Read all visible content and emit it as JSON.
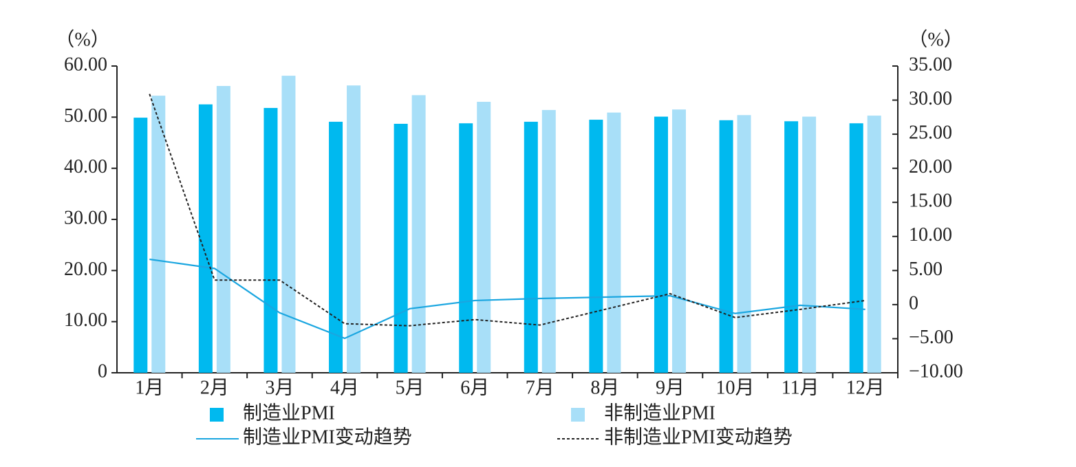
{
  "chart_data": {
    "type": "bar-line",
    "y_label": "（%）",
    "y2_label": "（%）",
    "categories": [
      "1月",
      "2月",
      "3月",
      "4月",
      "5月",
      "6月",
      "7月",
      "8月",
      "9月",
      "10月",
      "11月",
      "12月"
    ],
    "series": [
      {
        "name": "制造业PMI",
        "type": "bar",
        "color": "#00b9ef",
        "values": [
          49.9,
          52.5,
          51.8,
          49.1,
          48.7,
          48.8,
          49.1,
          49.5,
          50.1,
          49.4,
          49.2,
          48.8
        ]
      },
      {
        "name": "非制造业PMI",
        "type": "bar",
        "color": "#a8dff8",
        "values": [
          54.2,
          56.1,
          58.1,
          56.2,
          54.3,
          53.0,
          51.4,
          50.9,
          51.5,
          50.4,
          50.1,
          50.3
        ]
      },
      {
        "name": "制造业PMI变动趋势",
        "type": "line",
        "axis": "y2",
        "color": "#1aa6e0",
        "dashed": false,
        "values": [
          6.65,
          5.3,
          -1.2,
          -4.95,
          -0.6,
          0.6,
          0.9,
          1.1,
          1.3,
          -1.3,
          -0.1,
          -0.7
        ]
      },
      {
        "name": "非制造业PMI变动趋势",
        "type": "line",
        "axis": "y2",
        "color": "#222222",
        "dashed": true,
        "values": [
          30.9,
          3.6,
          3.6,
          -2.8,
          -3.1,
          -2.2,
          -3.0,
          -0.7,
          1.6,
          -1.9,
          -0.7,
          0.6
        ]
      }
    ],
    "ylim": [
      0,
      60
    ],
    "yticks": [
      0,
      {
        "value": 10,
        "label": "10.00"
      },
      {
        "value": 20,
        "label": "20.00"
      },
      {
        "value": 30,
        "label": "30.00"
      },
      {
        "value": 40,
        "label": "40.00"
      },
      {
        "value": 50,
        "label": "50.00"
      },
      {
        "value": 60,
        "label": "60.00"
      }
    ],
    "y2lim": [
      -10,
      35
    ],
    "y2ticks": [
      {
        "value": -10,
        "label": "−10.00"
      },
      {
        "value": -5,
        "label": "−5.00"
      },
      0,
      {
        "value": 5,
        "label": "5.00"
      },
      {
        "value": 10,
        "label": "10.00"
      },
      {
        "value": 15,
        "label": "15.00"
      },
      {
        "value": 20,
        "label": "20.00"
      },
      {
        "value": 25,
        "label": "25.00"
      },
      {
        "value": 30,
        "label": "30.00"
      },
      {
        "value": 35,
        "label": "35.00"
      }
    ],
    "grid": false
  }
}
